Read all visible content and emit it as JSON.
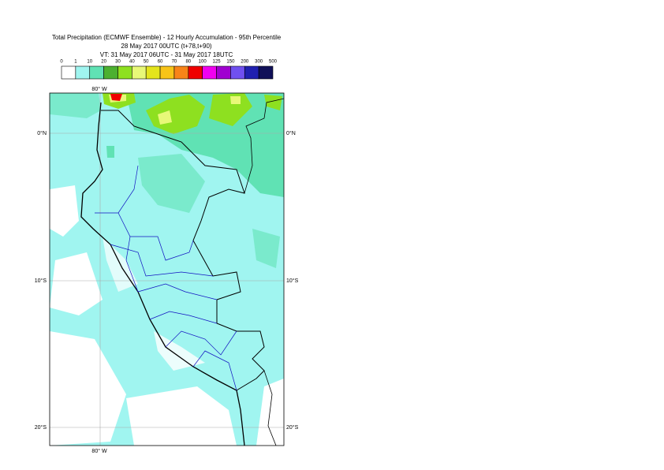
{
  "header": {
    "lines": [
      "Total Precipitation (ECMWF Ensemble) - 12 Hourly Accumulation - 95th Percentile",
      "28 May 2017 00UTC (t+78,t+90)",
      "VT: 31 May 2017 06UTC - 31 May 2017 18UTC"
    ]
  },
  "colorbar": {
    "labels": [
      0,
      1,
      10,
      20,
      30,
      40,
      50,
      60,
      70,
      80,
      100,
      125,
      150,
      200,
      300,
      500
    ],
    "colors": [
      "#ffffff",
      "#a0f5f0",
      "#60e2b4",
      "#4cb030",
      "#8ee020",
      "#e8f878",
      "#e4e41c",
      "#f8c418",
      "#f88418",
      "#f00000",
      "#f000f0",
      "#a000d0",
      "#7050f0",
      "#2020b0",
      "#101058"
    ]
  },
  "map": {
    "lon_labels": [
      "80° W"
    ],
    "lat_labels": [
      "0°N",
      "10°S",
      "20°S"
    ]
  }
}
